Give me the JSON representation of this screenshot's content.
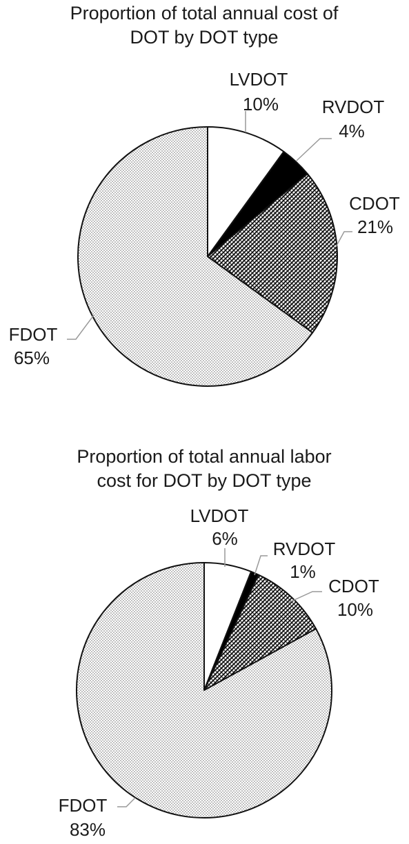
{
  "chart_data": [
    {
      "type": "pie",
      "title_lines": [
        "Proportion of total annual cost of",
        "DOT by DOT type"
      ],
      "slices": [
        {
          "name": "LVDOT",
          "label": "10%",
          "value": 10,
          "pattern": "white"
        },
        {
          "name": "RVDOT",
          "label": "4%",
          "value": 4,
          "pattern": "black"
        },
        {
          "name": "CDOT",
          "label": "21%",
          "value": 21,
          "pattern": "hatch"
        },
        {
          "name": "FDOT",
          "label": "65%",
          "value": 65,
          "pattern": "dots"
        }
      ]
    },
    {
      "type": "pie",
      "title_lines": [
        "Proportion of total annual labor",
        "cost for DOT by DOT type"
      ],
      "slices": [
        {
          "name": "LVDOT",
          "label": "6%",
          "value": 6,
          "pattern": "white"
        },
        {
          "name": "RVDOT",
          "label": "1%",
          "value": 1,
          "pattern": "black"
        },
        {
          "name": "CDOT",
          "label": "10%",
          "value": 10,
          "pattern": "hatch"
        },
        {
          "name": "FDOT",
          "label": "83%",
          "value": 83,
          "pattern": "dots"
        }
      ]
    }
  ]
}
